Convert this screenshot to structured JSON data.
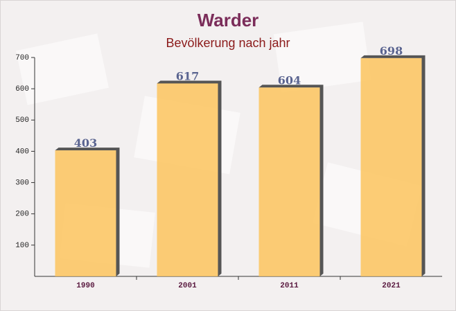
{
  "chart_data": {
    "type": "bar",
    "title": "Warder",
    "subtitle": "Bevölkerung nach jahr",
    "categories": [
      "1990",
      "2001",
      "2011",
      "2021"
    ],
    "values": [
      403,
      617,
      604,
      698
    ],
    "color": "#fcc45e",
    "ylim": [
      0,
      700
    ],
    "yticks": [
      100,
      200,
      300,
      400,
      500,
      600,
      700
    ]
  }
}
